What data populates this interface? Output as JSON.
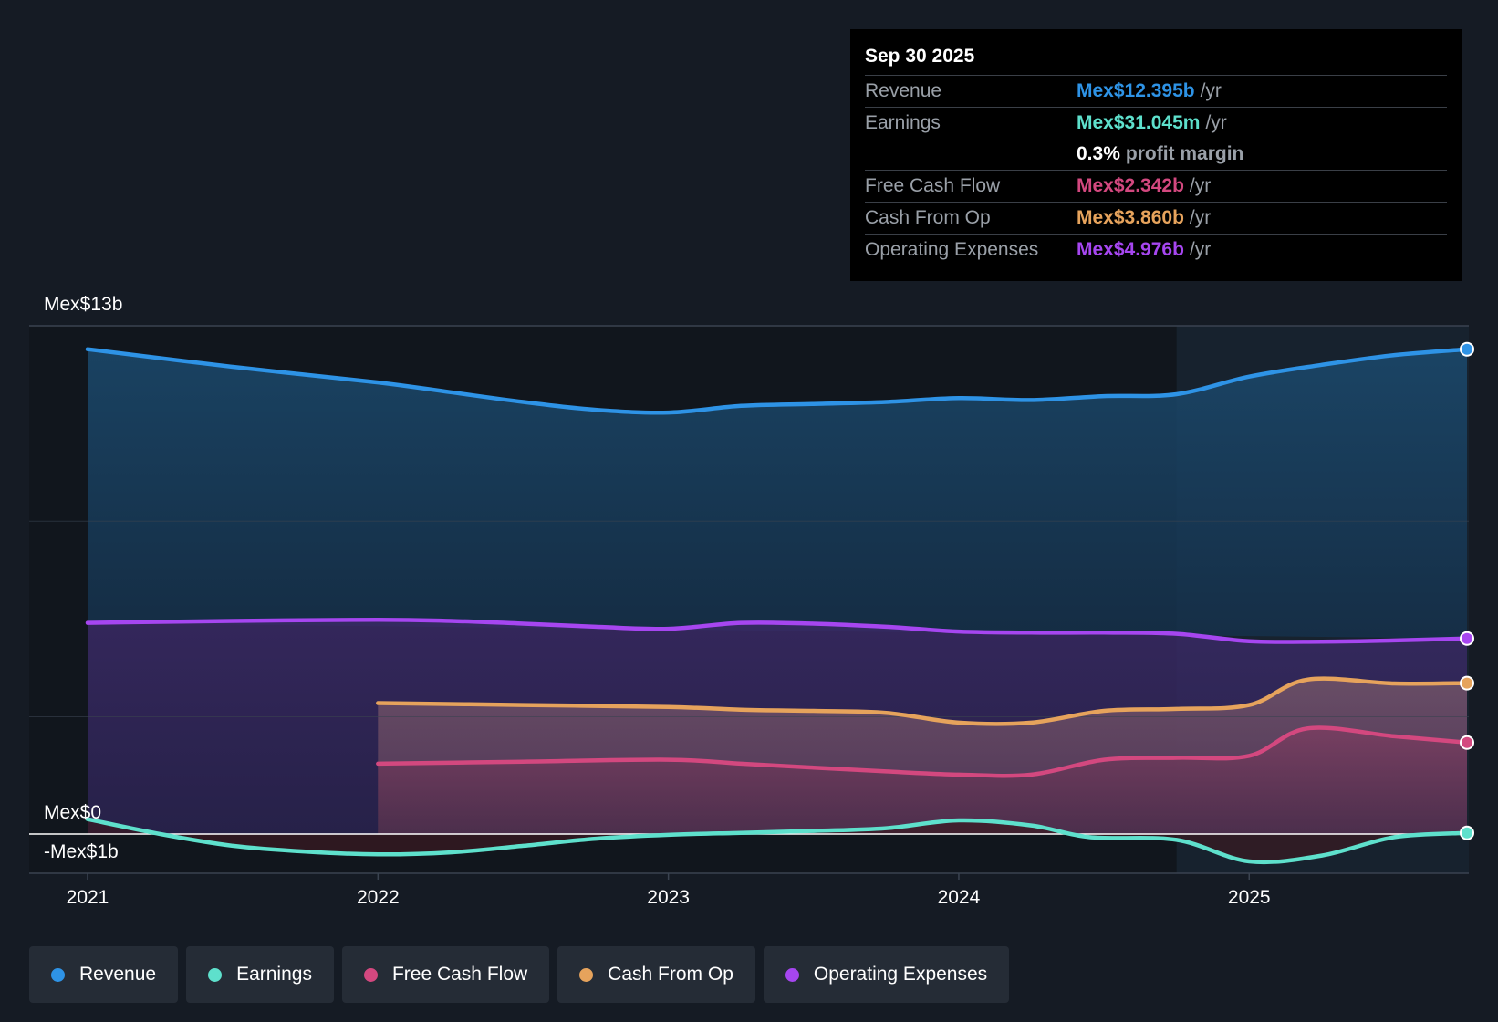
{
  "colors": {
    "revenue": "#2e93e6",
    "earnings": "#5ee0cc",
    "free_cash_flow": "#d3487f",
    "cash_from_op": "#e6a35c",
    "operating_expenses": "#a646f0"
  },
  "tooltip": {
    "date": "Sep 30 2025",
    "rows": {
      "revenue": {
        "label": "Revenue",
        "value": "Mex$12.395b",
        "unit": "/yr"
      },
      "earnings": {
        "label": "Earnings",
        "value": "Mex$31.045m",
        "unit": "/yr"
      },
      "margin": {
        "value": "0.3%",
        "unit": "profit margin"
      },
      "free_cash_flow": {
        "label": "Free Cash Flow",
        "value": "Mex$2.342b",
        "unit": "/yr"
      },
      "cash_from_op": {
        "label": "Cash From Op",
        "value": "Mex$3.860b",
        "unit": "/yr"
      },
      "operating_expenses": {
        "label": "Operating Expenses",
        "value": "Mex$4.976b",
        "unit": "/yr"
      }
    }
  },
  "legend": {
    "revenue": "Revenue",
    "earnings": "Earnings",
    "free_cash_flow": "Free Cash Flow",
    "cash_from_op": "Cash From Op",
    "operating_expenses": "Operating Expenses"
  },
  "chart_data": {
    "type": "area",
    "title": "",
    "xlabel": "",
    "ylabel": "",
    "ylim": [
      -1,
      13
    ],
    "xlim": [
      2021.0,
      2025.75
    ],
    "y_tick_labels": {
      "top": "Mex$13b",
      "zero": "Mex$0",
      "bottom": "-Mex$1b"
    },
    "x_ticks": [
      {
        "value": 2021,
        "label": "2021"
      },
      {
        "value": 2022,
        "label": "2022"
      },
      {
        "value": 2023,
        "label": "2023"
      },
      {
        "value": 2024,
        "label": "2024"
      },
      {
        "value": 2025,
        "label": "2025"
      }
    ],
    "forecast_start": 2024.75,
    "series": [
      {
        "key": "revenue",
        "name": "Revenue",
        "x": [
          2021.0,
          2021.5,
          2022.0,
          2022.25,
          2022.5,
          2022.75,
          2023.0,
          2023.25,
          2023.5,
          2023.75,
          2024.0,
          2024.25,
          2024.5,
          2024.75,
          2025.0,
          2025.25,
          2025.5,
          2025.75
        ],
        "y": [
          12.4,
          11.95,
          11.55,
          11.3,
          11.05,
          10.85,
          10.78,
          10.95,
          11.0,
          11.05,
          11.15,
          11.1,
          11.2,
          11.25,
          11.7,
          12.0,
          12.25,
          12.4
        ]
      },
      {
        "key": "operating_expenses",
        "name": "Operating Expenses",
        "x": [
          2021.0,
          2021.5,
          2022.0,
          2022.25,
          2022.5,
          2022.75,
          2023.0,
          2023.25,
          2023.5,
          2023.75,
          2024.0,
          2024.25,
          2024.5,
          2024.75,
          2025.0,
          2025.25,
          2025.5,
          2025.75
        ],
        "y": [
          5.4,
          5.45,
          5.48,
          5.45,
          5.38,
          5.3,
          5.25,
          5.4,
          5.38,
          5.3,
          5.18,
          5.15,
          5.15,
          5.12,
          4.93,
          4.92,
          4.95,
          5.0
        ],
        "fill": "from_zero"
      },
      {
        "key": "cash_from_op",
        "name": "Cash From Op",
        "x": [
          2022.0,
          2022.5,
          2023.0,
          2023.25,
          2023.5,
          2023.75,
          2024.0,
          2024.25,
          2024.5,
          2024.75,
          2025.0,
          2025.2,
          2025.5,
          2025.75
        ],
        "y": [
          3.35,
          3.3,
          3.25,
          3.18,
          3.15,
          3.1,
          2.85,
          2.85,
          3.15,
          3.2,
          3.3,
          3.95,
          3.85,
          3.86
        ]
      },
      {
        "key": "free_cash_flow",
        "name": "Free Cash Flow",
        "x": [
          2022.0,
          2022.5,
          2023.0,
          2023.25,
          2023.5,
          2023.75,
          2024.0,
          2024.25,
          2024.5,
          2024.75,
          2025.0,
          2025.2,
          2025.5,
          2025.75
        ],
        "y": [
          1.8,
          1.85,
          1.9,
          1.8,
          1.7,
          1.6,
          1.52,
          1.52,
          1.9,
          1.95,
          2.0,
          2.7,
          2.5,
          2.34
        ]
      },
      {
        "key": "earnings",
        "name": "Earnings",
        "x": [
          2021.0,
          2021.25,
          2021.5,
          2021.75,
          2022.0,
          2022.25,
          2022.5,
          2022.75,
          2023.0,
          2023.25,
          2023.5,
          2023.75,
          2024.0,
          2024.25,
          2024.45,
          2024.75,
          2025.0,
          2025.25,
          2025.5,
          2025.75
        ],
        "y": [
          0.38,
          0.0,
          -0.3,
          -0.45,
          -0.52,
          -0.47,
          -0.3,
          -0.12,
          -0.02,
          0.03,
          0.08,
          0.15,
          0.35,
          0.22,
          -0.08,
          -0.15,
          -0.7,
          -0.55,
          -0.08,
          0.03
        ]
      }
    ]
  }
}
